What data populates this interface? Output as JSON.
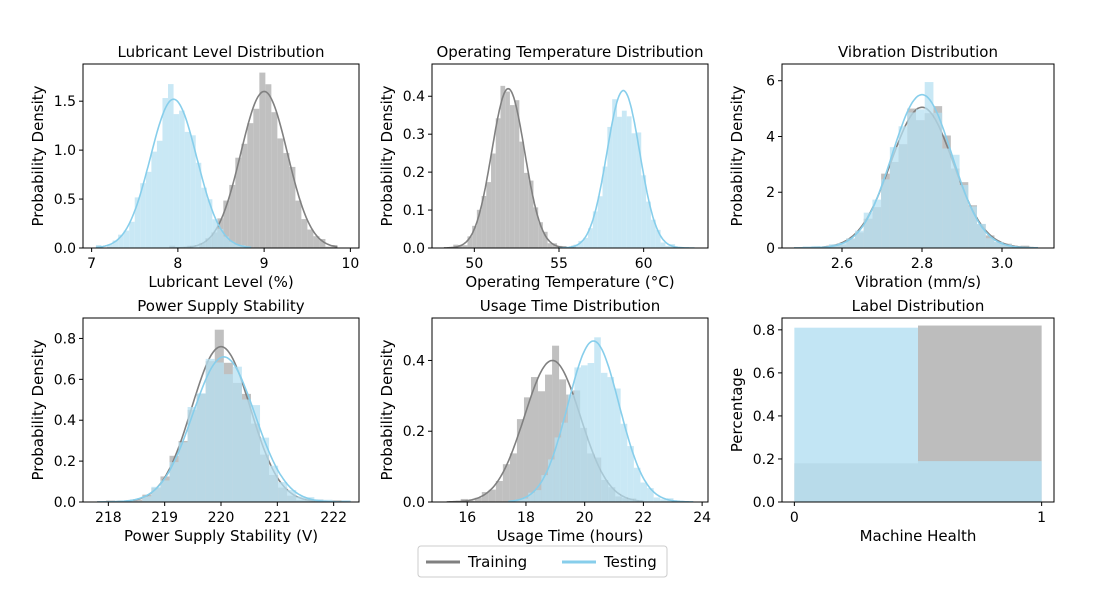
{
  "colors": {
    "training": "#808080",
    "training_fill": "#bdbdbd",
    "testing": "#87ceeb",
    "testing_fill": "#b7e0f2"
  },
  "legend": {
    "training_label": "Training",
    "testing_label": "Testing"
  },
  "chart_data": [
    {
      "type": "histogram-kde",
      "title": "Lubricant Level Distribution",
      "xlabel": "Lubricant Level (%)",
      "ylabel": "Probability Density",
      "xlim": [
        6.9,
        10.1
      ],
      "ylim": [
        0,
        1.88
      ],
      "xticks": [
        7,
        8,
        9,
        10
      ],
      "xtick_labels": [
        "7",
        "8",
        "9",
        "10"
      ],
      "yticks": [
        0.0,
        0.5,
        1.0,
        1.5
      ],
      "ytick_labels": [
        "0.0",
        "0.5",
        "1.0",
        "1.5"
      ],
      "series": [
        {
          "name": "Training",
          "mean": 9.0,
          "std": 0.27,
          "peak": 1.6,
          "range": [
            7.9,
            9.85
          ]
        },
        {
          "name": "Testing",
          "mean": 7.95,
          "std": 0.27,
          "peak": 1.52,
          "range": [
            7.05,
            8.85
          ]
        }
      ]
    },
    {
      "type": "histogram-kde",
      "title": "Operating Temperature Distribution",
      "xlabel": "Operating Temperature (°C)",
      "ylabel": "Probability Density",
      "xlim": [
        47.5,
        63.8
      ],
      "ylim": [
        0,
        0.485
      ],
      "xticks": [
        50,
        55,
        60
      ],
      "xtick_labels": [
        "50",
        "55",
        "60"
      ],
      "yticks": [
        0.0,
        0.1,
        0.2,
        0.3,
        0.4
      ],
      "ytick_labels": [
        "0.0",
        "0.1",
        "0.2",
        "0.3",
        "0.4"
      ],
      "series": [
        {
          "name": "Training",
          "mean": 52.0,
          "std": 0.97,
          "peak": 0.42,
          "range": [
            48.2,
            56.0
          ]
        },
        {
          "name": "Testing",
          "mean": 58.8,
          "std": 0.97,
          "peak": 0.415,
          "range": [
            55.0,
            63.0
          ]
        }
      ]
    },
    {
      "type": "histogram-kde",
      "title": "Vibration Distribution",
      "xlabel": "Vibration (mm/s)",
      "ylabel": "Probability Density",
      "xlim": [
        2.45,
        3.13
      ],
      "ylim": [
        0,
        6.6
      ],
      "xticks": [
        2.6,
        2.8,
        3.0
      ],
      "xtick_labels": [
        "2.6",
        "2.8",
        "3.0"
      ],
      "yticks": [
        0,
        2,
        4,
        6
      ],
      "ytick_labels": [
        "0",
        "2",
        "4",
        "6"
      ],
      "series": [
        {
          "name": "Training",
          "mean": 2.8,
          "std": 0.078,
          "peak": 5.05,
          "range": [
            2.48,
            3.09
          ]
        },
        {
          "name": "Testing",
          "mean": 2.8,
          "std": 0.075,
          "peak": 5.5,
          "range": [
            2.48,
            3.09
          ]
        }
      ]
    },
    {
      "type": "histogram-kde",
      "title": "Power Supply Stability",
      "xlabel": "Power Supply Stability (V)",
      "ylabel": "Probability Density",
      "xlim": [
        217.55,
        222.45
      ],
      "ylim": [
        0,
        0.9
      ],
      "xticks": [
        218,
        219,
        220,
        221,
        222
      ],
      "xtick_labels": [
        "218",
        "219",
        "220",
        "221",
        "222"
      ],
      "yticks": [
        0.0,
        0.2,
        0.4,
        0.6,
        0.8
      ],
      "ytick_labels": [
        "0.0",
        "0.2",
        "0.4",
        "0.6",
        "0.8"
      ],
      "series": [
        {
          "name": "Training",
          "mean": 220.0,
          "std": 0.52,
          "peak": 0.76,
          "range": [
            217.8,
            222.3
          ]
        },
        {
          "name": "Testing",
          "mean": 220.05,
          "std": 0.55,
          "peak": 0.71,
          "range": [
            217.8,
            222.3
          ]
        }
      ]
    },
    {
      "type": "histogram-kde",
      "title": "Usage Time Distribution",
      "xlabel": "Usage Time (hours)",
      "ylabel": "Probability Density",
      "xlim": [
        14.8,
        24.2
      ],
      "ylim": [
        0,
        0.52
      ],
      "xticks": [
        16,
        18,
        20,
        22,
        24
      ],
      "xtick_labels": [
        "16",
        "18",
        "20",
        "22",
        "24"
      ],
      "yticks": [
        0.0,
        0.2,
        0.4
      ],
      "ytick_labels": [
        "0.0",
        "0.2",
        "0.4"
      ],
      "series": [
        {
          "name": "Training",
          "mean": 18.9,
          "std": 0.95,
          "peak": 0.4,
          "range": [
            15.3,
            22.0
          ]
        },
        {
          "name": "Testing",
          "mean": 20.3,
          "std": 0.87,
          "peak": 0.455,
          "range": [
            17.4,
            23.7
          ]
        }
      ]
    },
    {
      "type": "bar",
      "title": "Label Distribution",
      "xlabel": "Machine Health",
      "ylabel": "Percentage",
      "xlim": [
        -0.05,
        1.05
      ],
      "ylim": [
        0,
        0.855
      ],
      "xticks": [
        0,
        1
      ],
      "xtick_labels": [
        "0",
        "1"
      ],
      "yticks": [
        0.0,
        0.2,
        0.4,
        0.6,
        0.8
      ],
      "ytick_labels": [
        "0.0",
        "0.2",
        "0.4",
        "0.6",
        "0.8"
      ],
      "series": [
        {
          "name": "Training",
          "bins": [
            [
              0,
              0.5,
              0.18
            ],
            [
              0.5,
              1.0,
              0.82
            ]
          ]
        },
        {
          "name": "Testing",
          "bins": [
            [
              0,
              0.5,
              0.81
            ],
            [
              0.5,
              1.0,
              0.19
            ]
          ]
        }
      ]
    }
  ]
}
